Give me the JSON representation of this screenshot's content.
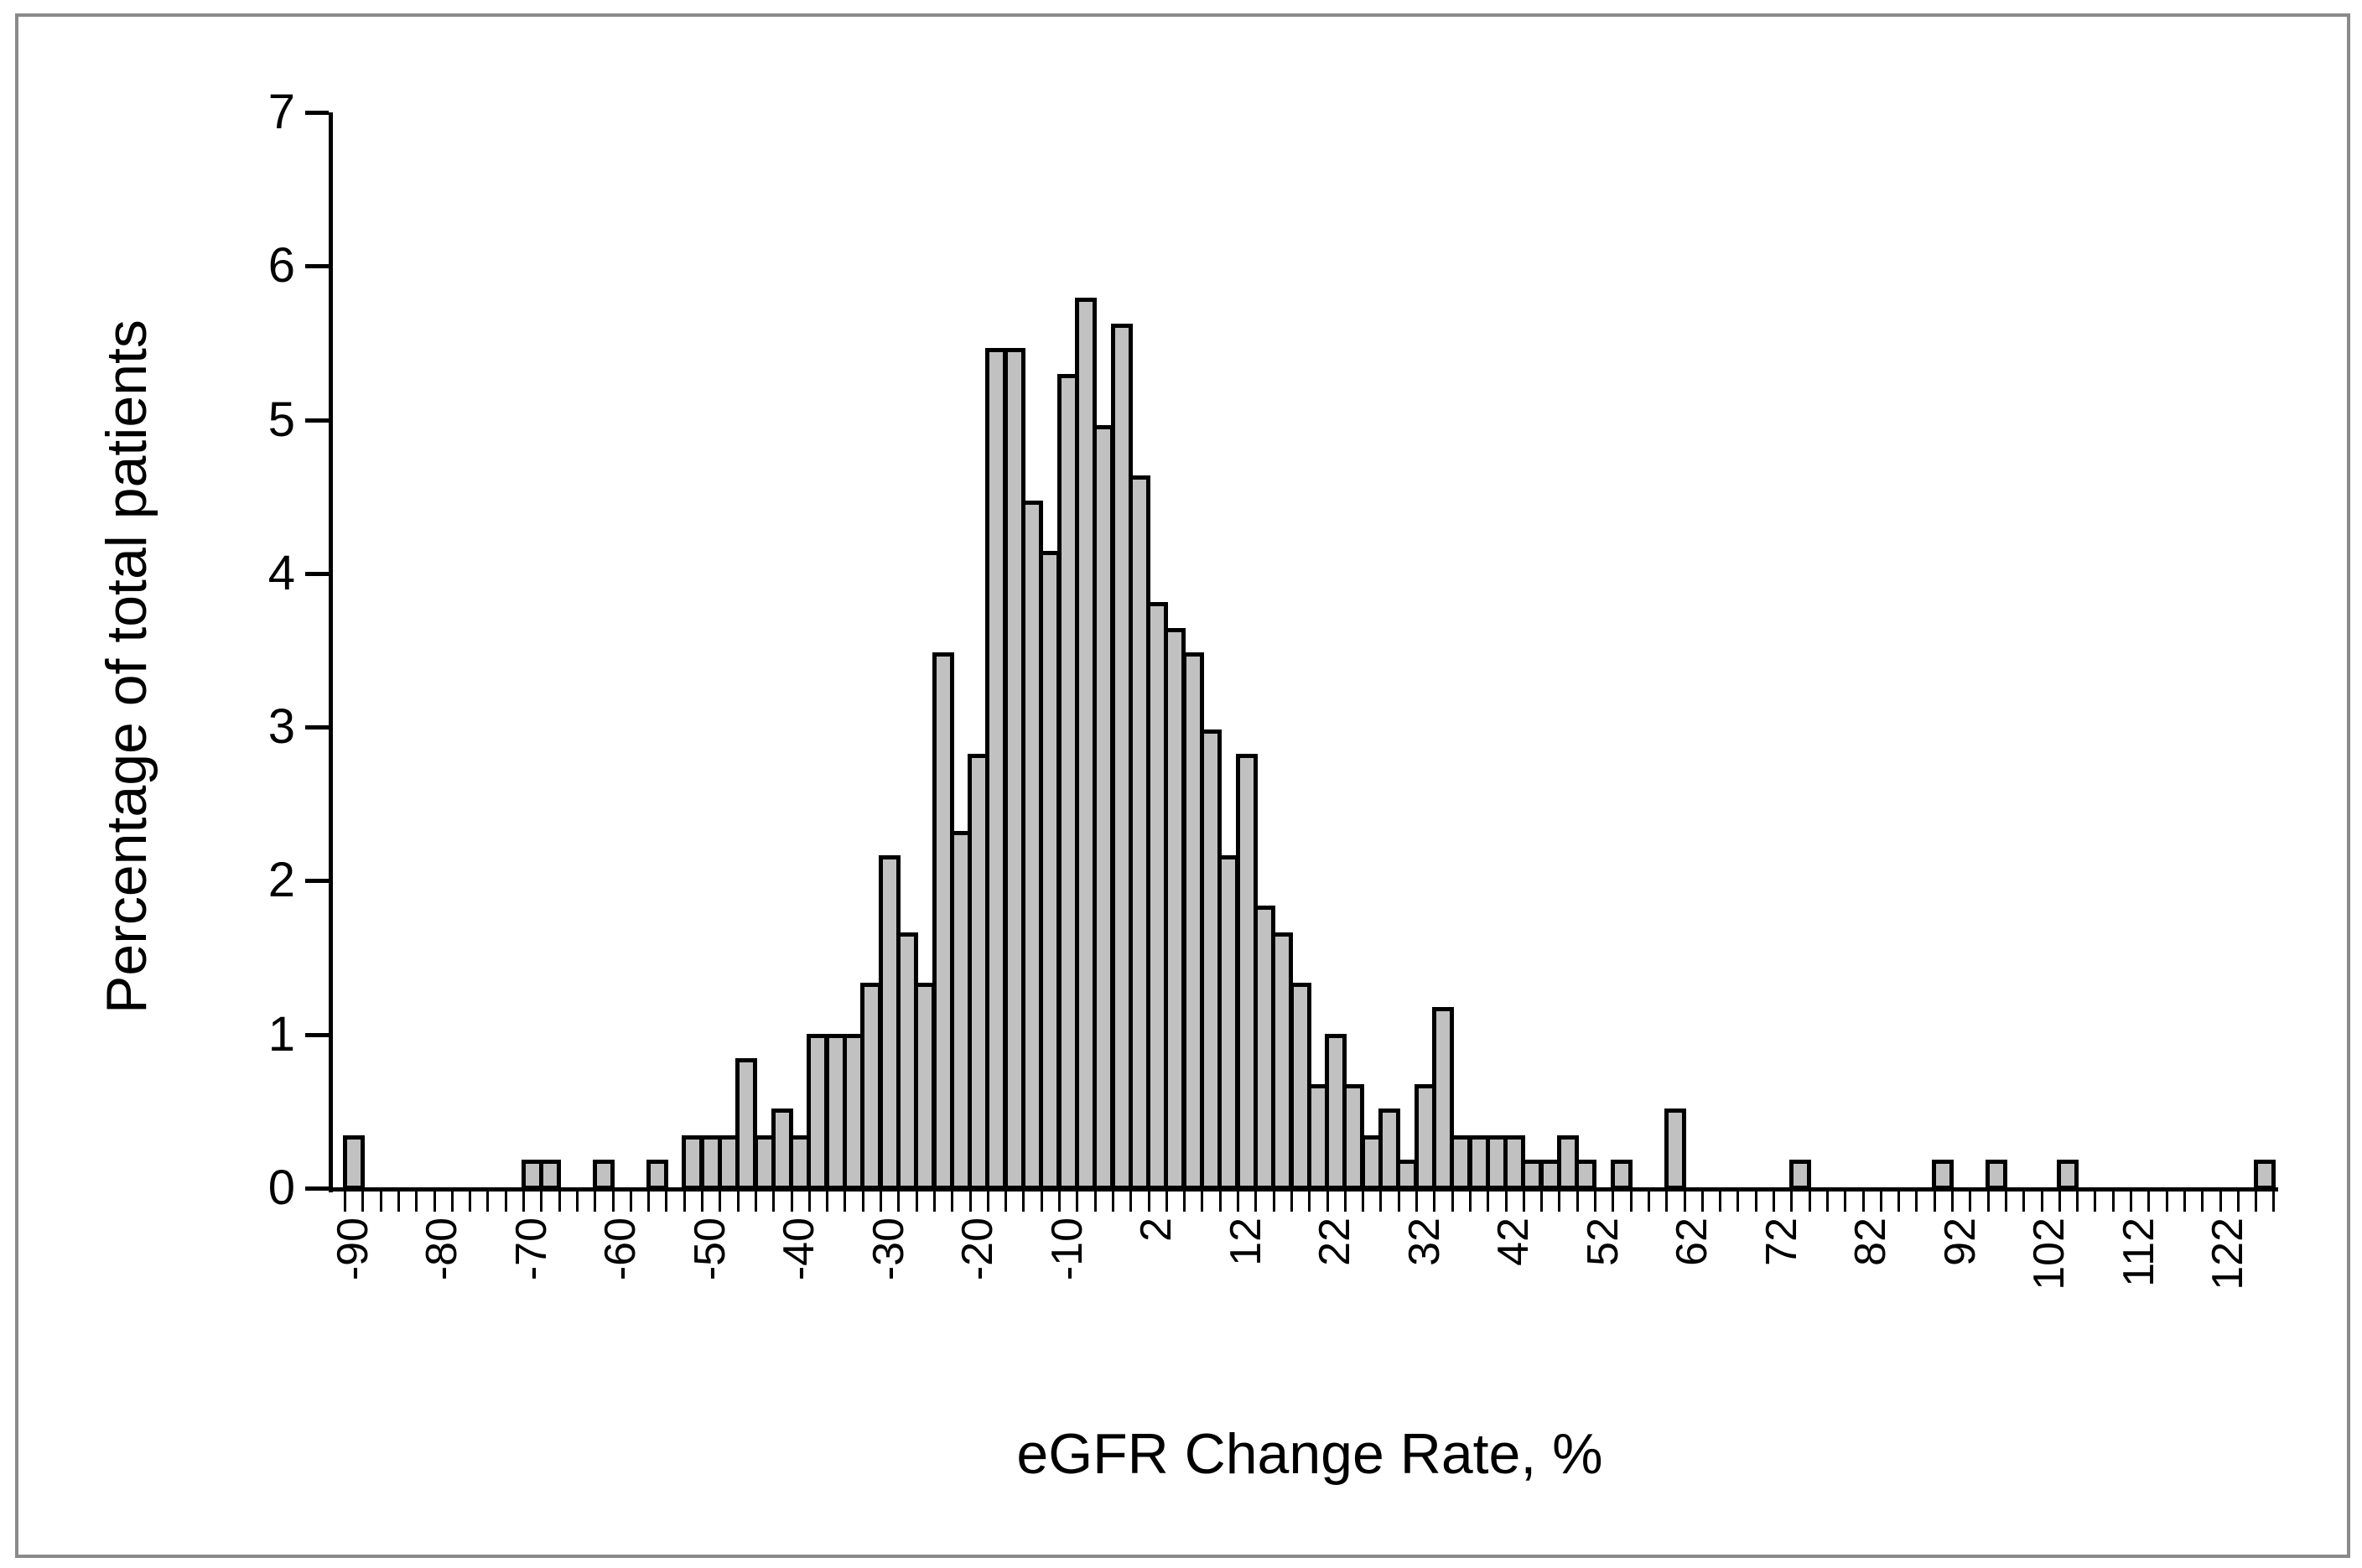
{
  "figure": {
    "frame_color": "#8a8a8a",
    "background": "#ffffff"
  },
  "chart_data": {
    "type": "bar",
    "subtype": "histogram",
    "title": "",
    "xlabel": "eGFR Change Rate, %",
    "ylabel": "Percentage of total patients",
    "ylim": [
      0,
      7
    ],
    "grid": false,
    "legend": false,
    "bar_fill": "#c1c1c1",
    "bar_border": "#000000",
    "bin_width_value": 2,
    "label_every_n_bins": 5,
    "ytick_labels": [
      "0",
      "1",
      "2",
      "3",
      "4",
      "5",
      "6",
      "7"
    ],
    "xtick_labels": [
      "-90",
      "-80",
      "-70",
      "-60",
      "-50",
      "-40",
      "-30",
      "-20",
      "-10",
      "2",
      "12",
      "22",
      "32",
      "42",
      "52",
      "62",
      "72",
      "82",
      "92",
      "102",
      "112",
      "122"
    ],
    "categories": [
      -90,
      -88,
      -86,
      -84,
      -82,
      -80,
      -78,
      -76,
      -74,
      -72,
      -70,
      -68,
      -66,
      -64,
      -62,
      -60,
      -58,
      -56,
      -54,
      -52,
      -50,
      -48,
      -46,
      -44,
      -42,
      -40,
      -38,
      -36,
      -34,
      -32,
      -30,
      -28,
      -26,
      -24,
      -22,
      -20,
      -18,
      -16,
      -14,
      -12,
      -10,
      -8,
      -6,
      -4,
      -2,
      2,
      4,
      6,
      8,
      10,
      12,
      14,
      16,
      18,
      20,
      22,
      24,
      26,
      28,
      30,
      32,
      34,
      36,
      38,
      40,
      42,
      44,
      46,
      48,
      50,
      52,
      54,
      56,
      58,
      60,
      62,
      64,
      66,
      68,
      70,
      72,
      74,
      76,
      78,
      80,
      82,
      84,
      86,
      88,
      90,
      92,
      94,
      96,
      98,
      100,
      102,
      104,
      106,
      108,
      110,
      112,
      114,
      116,
      118,
      120,
      122,
      124,
      126
    ],
    "values": [
      0.33,
      0,
      0,
      0,
      0,
      0,
      0,
      0,
      0,
      0,
      0.17,
      0.17,
      0,
      0,
      0.17,
      0,
      0,
      0.17,
      0,
      0.33,
      0.33,
      0.33,
      0.83,
      0.33,
      0.5,
      0.33,
      0.99,
      0.99,
      0.99,
      1.32,
      2.15,
      1.65,
      1.32,
      3.47,
      2.31,
      2.81,
      5.45,
      5.45,
      4.46,
      4.13,
      5.28,
      5.78,
      4.95,
      5.61,
      4.62,
      3.8,
      3.63,
      3.47,
      2.97,
      2.15,
      2.81,
      1.82,
      1.65,
      1.32,
      0.66,
      0.99,
      0.66,
      0.33,
      0.5,
      0.17,
      0.66,
      1.16,
      0.33,
      0.33,
      0.33,
      0.33,
      0.17,
      0.17,
      0.33,
      0.17,
      0,
      0.17,
      0,
      0,
      0.5,
      0,
      0,
      0,
      0,
      0,
      0,
      0.17,
      0,
      0,
      0,
      0,
      0,
      0,
      0,
      0.17,
      0,
      0,
      0.17,
      0,
      0,
      0,
      0.17,
      0,
      0,
      0,
      0,
      0,
      0,
      0,
      0,
      0,
      0,
      0.17
    ]
  }
}
